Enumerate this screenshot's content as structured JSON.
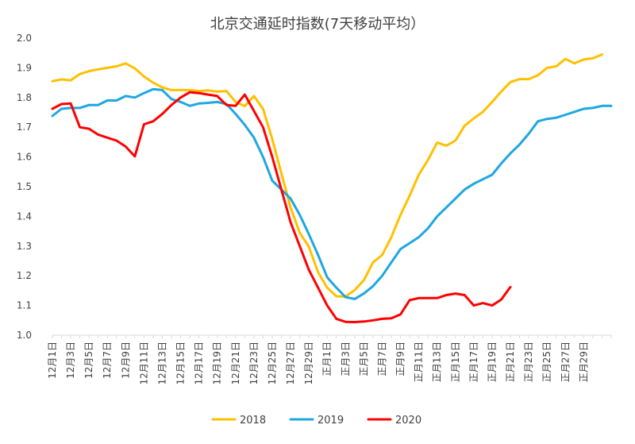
{
  "chart_data": {
    "type": "line",
    "title": "北京交通延时指数(7天移动平均）",
    "xlabel": "",
    "ylabel": "",
    "ylim": [
      1.0,
      2.0
    ],
    "yticks": [
      "1.0",
      "1.1",
      "1.2",
      "1.3",
      "1.4",
      "1.5",
      "1.6",
      "1.7",
      "1.8",
      "1.9",
      "2.0"
    ],
    "grid": false,
    "legend_position": "bottom",
    "x_tick_labels": [
      "12月1日",
      "12月3日",
      "12月5日",
      "12月7日",
      "12月9日",
      "12月11日",
      "12月13日",
      "12月15日",
      "12月17日",
      "12月19日",
      "12月21日",
      "12月23日",
      "12月25日",
      "12月27日",
      "12月29日",
      "正月1日",
      "正月3日",
      "正月5日",
      "正月7日",
      "正月9日",
      "正月11日",
      "正月13日",
      "正月15日",
      "正月17日",
      "正月19日",
      "正月21日",
      "正月23日",
      "正月25日",
      "正月27日",
      "正月29日"
    ],
    "series": [
      {
        "name": "2018",
        "color": "#FFC000",
        "values": [
          1.855,
          1.861,
          1.858,
          1.879,
          1.889,
          1.895,
          1.9,
          1.905,
          1.915,
          1.898,
          1.871,
          1.85,
          1.834,
          1.825,
          1.825,
          1.825,
          1.822,
          1.824,
          1.82,
          1.822,
          1.785,
          1.771,
          1.805,
          1.762,
          1.66,
          1.545,
          1.43,
          1.345,
          1.298,
          1.212,
          1.16,
          1.131,
          1.13,
          1.152,
          1.185,
          1.245,
          1.27,
          1.33,
          1.405,
          1.47,
          1.54,
          1.59,
          1.648,
          1.638,
          1.655,
          1.705,
          1.73,
          1.752,
          1.785,
          1.82,
          1.852,
          1.862,
          1.862,
          1.875,
          1.9,
          1.905,
          1.93,
          1.915,
          1.928,
          1.932,
          1.945
        ]
      },
      {
        "name": "2019",
        "color": "#1EA7E1",
        "values": [
          1.738,
          1.762,
          1.765,
          1.765,
          1.775,
          1.775,
          1.79,
          1.79,
          1.805,
          1.8,
          1.815,
          1.828,
          1.825,
          1.795,
          1.785,
          1.772,
          1.78,
          1.782,
          1.785,
          1.778,
          1.745,
          1.708,
          1.665,
          1.6,
          1.52,
          1.49,
          1.46,
          1.405,
          1.34,
          1.27,
          1.195,
          1.16,
          1.128,
          1.122,
          1.14,
          1.165,
          1.2,
          1.245,
          1.29,
          1.31,
          1.33,
          1.36,
          1.4,
          1.43,
          1.46,
          1.49,
          1.51,
          1.525,
          1.54,
          1.578,
          1.612,
          1.642,
          1.678,
          1.72,
          1.728,
          1.732,
          1.742,
          1.752,
          1.762,
          1.765,
          1.772,
          1.772
        ]
      },
      {
        "name": "2020",
        "color": "#FF0000",
        "values": [
          1.762,
          1.778,
          1.78,
          1.7,
          1.695,
          1.675,
          1.665,
          1.655,
          1.635,
          1.602,
          1.71,
          1.72,
          1.745,
          1.775,
          1.8,
          1.818,
          1.815,
          1.81,
          1.805,
          1.775,
          1.772,
          1.81,
          1.755,
          1.7,
          1.6,
          1.49,
          1.38,
          1.3,
          1.22,
          1.16,
          1.1,
          1.055,
          1.045,
          1.044,
          1.046,
          1.05,
          1.055,
          1.057,
          1.07,
          1.118,
          1.125,
          1.125,
          1.125,
          1.135,
          1.14,
          1.135,
          1.1,
          1.108,
          1.1,
          1.12,
          1.162
        ]
      }
    ]
  }
}
